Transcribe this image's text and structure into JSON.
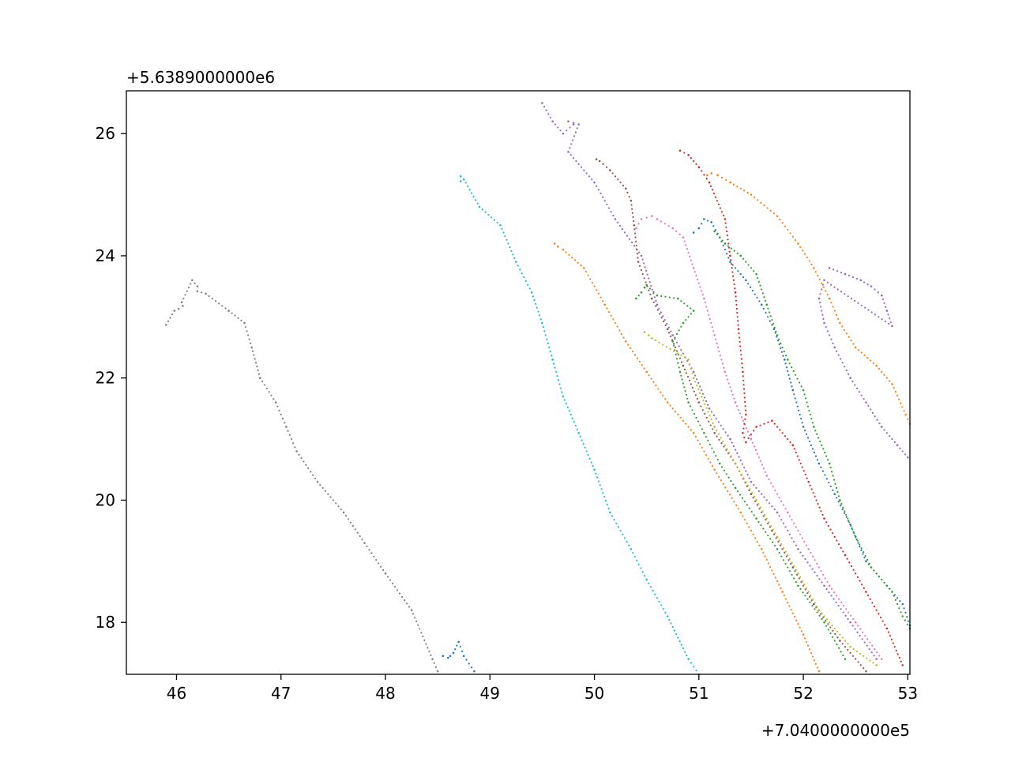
{
  "chart_data": {
    "type": "scatter",
    "title": "",
    "xlabel": "",
    "ylabel": "",
    "x_offset_text": "+7.0400000000e5",
    "y_offset_text": "+5.6389000000e6",
    "xlim": [
      45.52,
      53.02
    ],
    "ylim": [
      17.15,
      26.7
    ],
    "x_ticks": [
      46,
      47,
      48,
      49,
      50,
      51,
      52,
      53
    ],
    "x_tick_labels": [
      "46",
      "47",
      "48",
      "49",
      "50",
      "51",
      "52",
      "53"
    ],
    "y_ticks": [
      18,
      20,
      22,
      24,
      26
    ],
    "y_tick_labels": [
      "18",
      "20",
      "22",
      "24",
      "26"
    ],
    "grid": false,
    "legend": "none",
    "series": [
      {
        "color": "#7f7f7f",
        "points": [
          [
            45.9,
            22.87
          ],
          [
            45.98,
            23.1
          ],
          [
            46.02,
            23.13
          ],
          [
            46.06,
            23.18
          ],
          [
            46.05,
            23.24
          ],
          [
            46.15,
            23.6
          ],
          [
            46.2,
            23.5
          ],
          [
            46.2,
            23.42
          ],
          [
            46.28,
            23.38
          ],
          [
            46.5,
            23.1
          ],
          [
            46.65,
            22.9
          ],
          [
            46.72,
            22.5
          ],
          [
            46.8,
            22.0
          ],
          [
            46.95,
            21.6
          ],
          [
            47.05,
            21.2
          ],
          [
            47.15,
            20.8
          ],
          [
            47.35,
            20.3
          ],
          [
            47.6,
            19.8
          ],
          [
            47.8,
            19.3
          ],
          [
            48.0,
            18.8
          ],
          [
            48.25,
            18.2
          ],
          [
            48.45,
            17.4
          ],
          [
            48.5,
            17.2
          ]
        ]
      },
      {
        "color": "#1f77b4",
        "points": [
          [
            48.55,
            17.45
          ],
          [
            48.6,
            17.42
          ],
          [
            48.62,
            17.45
          ],
          [
            48.65,
            17.5
          ],
          [
            48.7,
            17.68
          ],
          [
            48.75,
            17.45
          ],
          [
            48.85,
            17.2
          ]
        ]
      },
      {
        "color": "#17becf",
        "points": [
          [
            48.72,
            25.3
          ],
          [
            48.72,
            25.22
          ],
          [
            48.75,
            25.25
          ],
          [
            48.9,
            24.8
          ],
          [
            49.1,
            24.5
          ],
          [
            49.25,
            23.9
          ],
          [
            49.4,
            23.4
          ],
          [
            49.5,
            22.9
          ],
          [
            49.6,
            22.3
          ],
          [
            49.7,
            21.7
          ],
          [
            49.85,
            21.1
          ],
          [
            50.0,
            20.5
          ],
          [
            50.15,
            19.8
          ],
          [
            50.35,
            19.2
          ],
          [
            50.5,
            18.7
          ],
          [
            50.7,
            18.1
          ],
          [
            50.9,
            17.4
          ],
          [
            51.0,
            17.15
          ]
        ]
      },
      {
        "color": "#ff7f0e",
        "points": [
          [
            49.62,
            24.2
          ],
          [
            49.65,
            24.15
          ],
          [
            49.7,
            24.1
          ],
          [
            49.9,
            23.8
          ],
          [
            50.1,
            23.2
          ],
          [
            50.3,
            22.6
          ],
          [
            50.5,
            22.1
          ],
          [
            50.7,
            21.6
          ],
          [
            50.95,
            21.1
          ],
          [
            51.15,
            20.5
          ],
          [
            51.4,
            19.8
          ],
          [
            51.6,
            19.2
          ],
          [
            51.8,
            18.5
          ],
          [
            52.0,
            17.8
          ],
          [
            52.15,
            17.2
          ]
        ]
      },
      {
        "color": "#9467bd",
        "points": [
          [
            49.5,
            26.5
          ],
          [
            49.6,
            26.2
          ],
          [
            49.7,
            26.0
          ],
          [
            49.8,
            26.15
          ],
          [
            49.75,
            26.2
          ],
          [
            49.85,
            26.15
          ],
          [
            49.75,
            25.7
          ],
          [
            50.0,
            25.2
          ],
          [
            50.2,
            24.6
          ],
          [
            50.45,
            24.0
          ],
          [
            50.6,
            23.2
          ],
          [
            50.75,
            22.7
          ],
          [
            50.95,
            22.1
          ],
          [
            51.1,
            21.5
          ],
          [
            51.3,
            21.0
          ],
          [
            51.5,
            20.3
          ],
          [
            51.75,
            19.8
          ],
          [
            51.95,
            19.2
          ],
          [
            52.2,
            18.6
          ],
          [
            52.45,
            18.0
          ],
          [
            52.7,
            17.4
          ]
        ]
      },
      {
        "color": "#8c564b",
        "points": [
          [
            50.02,
            25.58
          ],
          [
            50.05,
            25.55
          ],
          [
            50.15,
            25.4
          ],
          [
            50.3,
            25.1
          ],
          [
            50.35,
            24.9
          ],
          [
            50.38,
            24.5
          ],
          [
            50.42,
            23.9
          ],
          [
            50.55,
            23.3
          ],
          [
            50.7,
            22.8
          ],
          [
            50.85,
            22.2
          ],
          [
            51.0,
            21.6
          ],
          [
            51.15,
            21.1
          ],
          [
            51.35,
            20.6
          ],
          [
            51.5,
            20.1
          ],
          [
            51.7,
            19.5
          ],
          [
            51.9,
            18.9
          ],
          [
            52.1,
            18.3
          ],
          [
            52.35,
            17.7
          ],
          [
            52.6,
            17.2
          ]
        ]
      },
      {
        "color": "#e377c2",
        "points": [
          [
            50.4,
            24.45
          ],
          [
            50.45,
            24.6
          ],
          [
            50.55,
            24.65
          ],
          [
            50.6,
            24.6
          ],
          [
            50.75,
            24.45
          ],
          [
            50.85,
            24.3
          ],
          [
            50.95,
            23.8
          ],
          [
            51.05,
            23.3
          ],
          [
            51.15,
            22.7
          ],
          [
            51.25,
            22.1
          ],
          [
            51.35,
            21.6
          ],
          [
            51.5,
            21.0
          ],
          [
            51.65,
            20.4
          ],
          [
            51.85,
            19.8
          ],
          [
            52.05,
            19.2
          ],
          [
            52.25,
            18.6
          ],
          [
            52.5,
            18.0
          ],
          [
            52.75,
            17.4
          ]
        ]
      },
      {
        "color": "#d62728",
        "points": [
          [
            50.82,
            25.72
          ],
          [
            50.9,
            25.65
          ],
          [
            51.0,
            25.45
          ],
          [
            51.1,
            25.2
          ],
          [
            51.25,
            24.6
          ],
          [
            51.3,
            24.0
          ],
          [
            51.35,
            23.4
          ],
          [
            51.38,
            22.8
          ],
          [
            51.42,
            22.1
          ],
          [
            51.45,
            21.4
          ],
          [
            51.42,
            21.1
          ],
          [
            51.45,
            20.95
          ],
          [
            51.55,
            21.2
          ],
          [
            51.7,
            21.3
          ],
          [
            51.9,
            20.9
          ],
          [
            52.05,
            20.3
          ],
          [
            52.2,
            19.7
          ],
          [
            52.4,
            19.1
          ],
          [
            52.6,
            18.5
          ],
          [
            52.8,
            17.9
          ],
          [
            52.95,
            17.3
          ]
        ]
      },
      {
        "color": "#ff7f0e",
        "points": [
          [
            51.08,
            25.32
          ],
          [
            51.12,
            25.35
          ],
          [
            51.18,
            25.32
          ],
          [
            51.3,
            25.2
          ],
          [
            51.5,
            25.0
          ],
          [
            51.75,
            24.65
          ],
          [
            51.95,
            24.2
          ],
          [
            52.1,
            23.8
          ],
          [
            52.25,
            23.3
          ],
          [
            52.35,
            22.9
          ],
          [
            52.5,
            22.5
          ],
          [
            52.7,
            22.2
          ],
          [
            52.85,
            21.9
          ],
          [
            52.98,
            21.4
          ],
          [
            53.02,
            21.25
          ]
        ]
      },
      {
        "color": "#1f77b4",
        "points": [
          [
            50.95,
            24.38
          ],
          [
            51.0,
            24.45
          ],
          [
            51.05,
            24.6
          ],
          [
            51.12,
            24.55
          ],
          [
            51.2,
            24.3
          ],
          [
            51.3,
            23.9
          ],
          [
            51.45,
            23.6
          ],
          [
            51.6,
            23.2
          ],
          [
            51.72,
            22.8
          ],
          [
            51.82,
            22.3
          ],
          [
            51.9,
            21.8
          ],
          [
            52.0,
            21.2
          ],
          [
            52.15,
            20.6
          ],
          [
            52.3,
            20.1
          ],
          [
            52.45,
            19.6
          ],
          [
            52.6,
            19.0
          ],
          [
            52.8,
            18.6
          ],
          [
            52.95,
            18.3
          ],
          [
            53.02,
            17.95
          ]
        ]
      },
      {
        "color": "#2ca02c",
        "points": [
          [
            50.4,
            23.3
          ],
          [
            50.45,
            23.4
          ],
          [
            50.48,
            23.48
          ],
          [
            50.5,
            23.52
          ],
          [
            50.6,
            23.35
          ],
          [
            50.8,
            23.3
          ],
          [
            50.95,
            23.1
          ],
          [
            50.85,
            22.9
          ],
          [
            50.75,
            22.6
          ],
          [
            50.82,
            22.1
          ],
          [
            50.9,
            21.6
          ],
          [
            51.05,
            21.1
          ],
          [
            51.2,
            20.6
          ],
          [
            51.35,
            20.2
          ],
          [
            51.55,
            19.7
          ],
          [
            51.75,
            19.2
          ],
          [
            51.95,
            18.6
          ],
          [
            52.2,
            18.0
          ],
          [
            52.4,
            17.4
          ]
        ]
      },
      {
        "color": "#2ca02c",
        "points": [
          [
            51.15,
            24.4
          ],
          [
            51.25,
            24.2
          ],
          [
            51.4,
            24.0
          ],
          [
            51.55,
            23.7
          ],
          [
            51.65,
            23.2
          ],
          [
            51.75,
            22.7
          ],
          [
            51.85,
            22.3
          ],
          [
            52.0,
            21.8
          ],
          [
            52.1,
            21.2
          ],
          [
            52.25,
            20.6
          ],
          [
            52.35,
            20.0
          ],
          [
            52.5,
            19.4
          ],
          [
            52.65,
            18.9
          ],
          [
            52.85,
            18.5
          ],
          [
            52.95,
            18.1
          ],
          [
            53.02,
            17.9
          ]
        ]
      },
      {
        "color": "#9467bd",
        "points": [
          [
            52.25,
            23.8
          ],
          [
            52.4,
            23.7
          ],
          [
            52.55,
            23.6
          ],
          [
            52.65,
            23.5
          ],
          [
            52.75,
            23.35
          ],
          [
            52.8,
            23.1
          ],
          [
            52.85,
            22.85
          ],
          [
            52.2,
            23.6
          ],
          [
            52.15,
            23.3
          ],
          [
            52.2,
            22.9
          ],
          [
            52.3,
            22.5
          ],
          [
            52.45,
            22.0
          ],
          [
            52.6,
            21.6
          ],
          [
            52.75,
            21.2
          ],
          [
            52.9,
            20.9
          ],
          [
            53.0,
            20.7
          ]
        ]
      },
      {
        "color": "#bcbd22",
        "points": [
          [
            50.48,
            22.75
          ],
          [
            50.52,
            22.7
          ],
          [
            50.55,
            22.65
          ],
          [
            50.9,
            22.3
          ],
          [
            50.95,
            22.0
          ],
          [
            51.15,
            21.2
          ],
          [
            51.35,
            20.6
          ],
          [
            51.55,
            20.0
          ],
          [
            51.75,
            19.4
          ],
          [
            51.95,
            18.8
          ],
          [
            52.15,
            18.2
          ],
          [
            52.45,
            17.6
          ],
          [
            52.7,
            17.3
          ]
        ]
      }
    ]
  }
}
